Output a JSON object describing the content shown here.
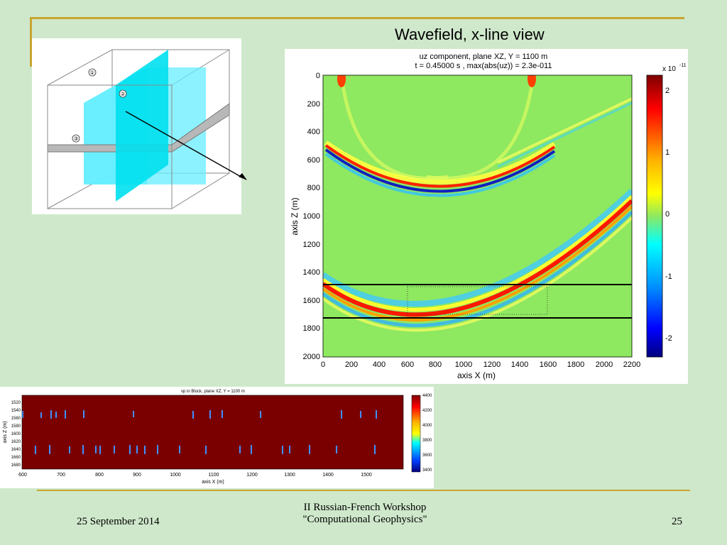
{
  "slide": {
    "title": "Wavefield, x-line view",
    "footer_date": "25 September 2014",
    "footer_center_line1": "II Russian-French Workshop",
    "footer_center_line2": "\"Computational Geophysics\"",
    "page_number": "25"
  },
  "diagram": {
    "labels": [
      "①",
      "②",
      "③"
    ]
  },
  "wave_plot": {
    "title_line1": "uz component,  plane XZ,  Y = 1100 m",
    "title_line2": "t = 0.45000 s ,   max(abs(uz)) = 2.3e-011",
    "xlabel": "axis X (m)",
    "ylabel": "axis Z (m)",
    "x_ticks": [
      "0",
      "200",
      "400",
      "600",
      "800",
      "1000",
      "1200",
      "1400",
      "1600",
      "1800",
      "2000",
      "2200"
    ],
    "y_ticks": [
      "0",
      "200",
      "400",
      "600",
      "800",
      "1000",
      "1200",
      "1400",
      "1600",
      "1800",
      "2000"
    ],
    "colorbar_exponent": "x 10",
    "colorbar_exponent_power": "-11",
    "colorbar_ticks": [
      "2",
      "1",
      "0",
      "-1",
      "-2"
    ]
  },
  "vp_plot": {
    "title": "vp in Block, plane XZ,  Y = 1100 m",
    "xlabel": "axis X (m)",
    "ylabel": "axis Z (m)",
    "x_ticks": [
      "600",
      "700",
      "800",
      "900",
      "1000",
      "1100",
      "1200",
      "1300",
      "1400",
      "1500"
    ],
    "y_ticks": [
      "1520",
      "1540",
      "1560",
      "1580",
      "1600",
      "1620",
      "1640",
      "1660",
      "1680"
    ],
    "colorbar_ticks": [
      "4400",
      "4200",
      "4000",
      "3800",
      "3600",
      "3400"
    ]
  },
  "colors": {
    "background": "#cfe8cb",
    "accent": "#c8a531",
    "field_zero": "#8ee860",
    "vp_fill": "#7a0000"
  }
}
